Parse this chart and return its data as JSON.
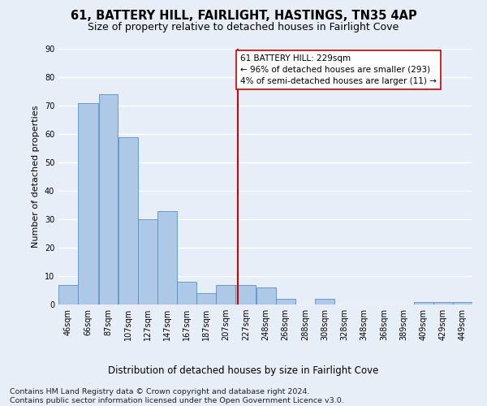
{
  "title": "61, BATTERY HILL, FAIRLIGHT, HASTINGS, TN35 4AP",
  "subtitle": "Size of property relative to detached houses in Fairlight Cove",
  "xlabel": "Distribution of detached houses by size in Fairlight Cove",
  "ylabel": "Number of detached properties",
  "footer_line1": "Contains HM Land Registry data © Crown copyright and database right 2024.",
  "footer_line2": "Contains public sector information licensed under the Open Government Licence v3.0.",
  "annotation_line1": "61 BATTERY HILL: 229sqm",
  "annotation_line2": "← 96% of detached houses are smaller (293)",
  "annotation_line3": "4% of semi-detached houses are larger (11) →",
  "bar_labels": [
    "46sqm",
    "66sqm",
    "87sqm",
    "107sqm",
    "127sqm",
    "147sqm",
    "167sqm",
    "187sqm",
    "207sqm",
    "227sqm",
    "248sqm",
    "268sqm",
    "288sqm",
    "308sqm",
    "328sqm",
    "348sqm",
    "368sqm",
    "389sqm",
    "409sqm",
    "429sqm",
    "449sqm"
  ],
  "bar_values": [
    7,
    71,
    74,
    59,
    30,
    33,
    8,
    4,
    7,
    7,
    6,
    2,
    0,
    2,
    0,
    0,
    0,
    0,
    1,
    1,
    1
  ],
  "bar_edges": [
    46,
    66,
    87,
    107,
    127,
    147,
    167,
    187,
    207,
    227,
    248,
    268,
    288,
    308,
    328,
    348,
    368,
    389,
    409,
    429,
    449,
    469
  ],
  "bar_color": "#aec8e8",
  "bar_edge_color": "#5a8fc0",
  "vline_x": 229,
  "vline_color": "#cc0000",
  "ylim": [
    0,
    90
  ],
  "yticks": [
    0,
    10,
    20,
    30,
    40,
    50,
    60,
    70,
    80,
    90
  ],
  "background_color": "#e8eef8",
  "grid_color": "#ffffff",
  "title_fontsize": 10.5,
  "subtitle_fontsize": 9,
  "annotation_fontsize": 7.5,
  "tick_fontsize": 7,
  "ylabel_fontsize": 8,
  "xlabel_fontsize": 8.5,
  "footer_fontsize": 6.8
}
